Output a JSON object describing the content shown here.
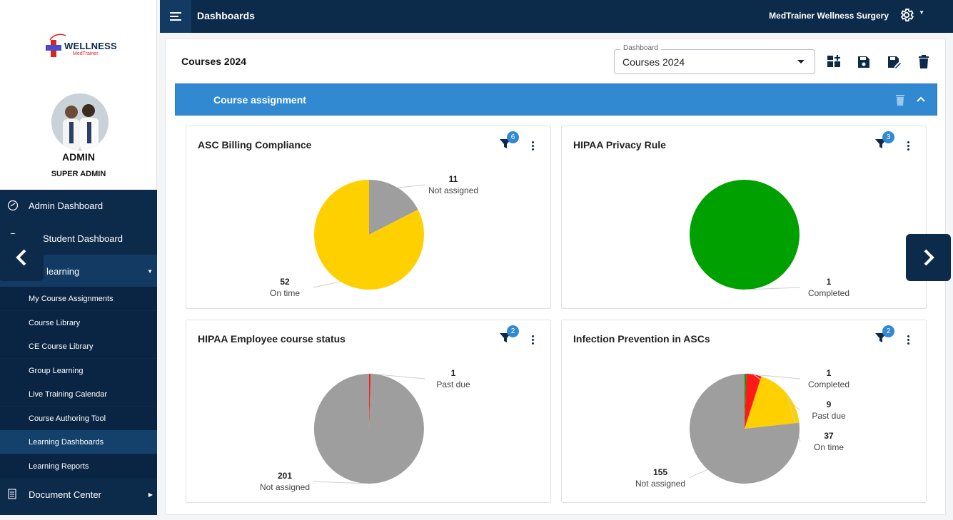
{
  "topbar": {
    "title": "Dashboards",
    "org_name": "MedTrainer Wellness Surgery"
  },
  "brand": {
    "logo_word": "WELLNESS",
    "logo_sub": "MedTrainer"
  },
  "user": {
    "name": "ADMIN",
    "role": "SUPER ADMIN"
  },
  "sidebar": {
    "items": [
      {
        "label": "Admin Dashboard",
        "icon": "dashboard-icon"
      },
      {
        "label": "Student Dashboard",
        "icon": "student-icon"
      },
      {
        "label": "learning",
        "icon": "learning-icon"
      },
      {
        "label": "Document Center",
        "icon": "document-icon"
      }
    ],
    "learning_sub": [
      "My Course Assignments",
      "Course Library",
      "CE Course Library",
      "Group Learning",
      "Live Training Calendar",
      "Course Authoring Tool",
      "Learning Dashboards",
      "Learning Reports"
    ]
  },
  "dashboard": {
    "title": "Courses 2024",
    "select_legend": "Dashboard",
    "select_value": "Courses 2024"
  },
  "section": {
    "title": "Course assignment"
  },
  "colors": {
    "navy": "#0c2a4a",
    "accent": "#3189d2",
    "on_time": "#ffd000",
    "not_assigned": "#9e9e9e",
    "completed": "#00a000",
    "past_due": "#ff1a1a"
  },
  "chart_data": [
    {
      "type": "pie",
      "title": "ASC Billing Compliance",
      "filter_count": "6",
      "series": [
        {
          "name": "Not assigned",
          "value": 11,
          "color": "#9e9e9e"
        },
        {
          "name": "On time",
          "value": 52,
          "color": "#ffd000"
        }
      ]
    },
    {
      "type": "pie",
      "title": "HIPAA Privacy Rule",
      "filter_count": "3",
      "series": [
        {
          "name": "Completed",
          "value": 1,
          "color": "#00a000"
        }
      ]
    },
    {
      "type": "pie",
      "title": "HIPAA Employee course status",
      "filter_count": "2",
      "series": [
        {
          "name": "Past due",
          "value": 1,
          "color": "#ff1a1a"
        },
        {
          "name": "Not assigned",
          "value": 201,
          "color": "#9e9e9e"
        }
      ]
    },
    {
      "type": "pie",
      "title": "Infection Prevention in ASCs",
      "filter_count": "2",
      "series": [
        {
          "name": "Completed",
          "value": 1,
          "color": "#00a000"
        },
        {
          "name": "Past due",
          "value": 9,
          "color": "#ff1a1a"
        },
        {
          "name": "On time",
          "value": 37,
          "color": "#ffd000"
        },
        {
          "name": "Not assigned",
          "value": 155,
          "color": "#9e9e9e"
        }
      ]
    }
  ]
}
